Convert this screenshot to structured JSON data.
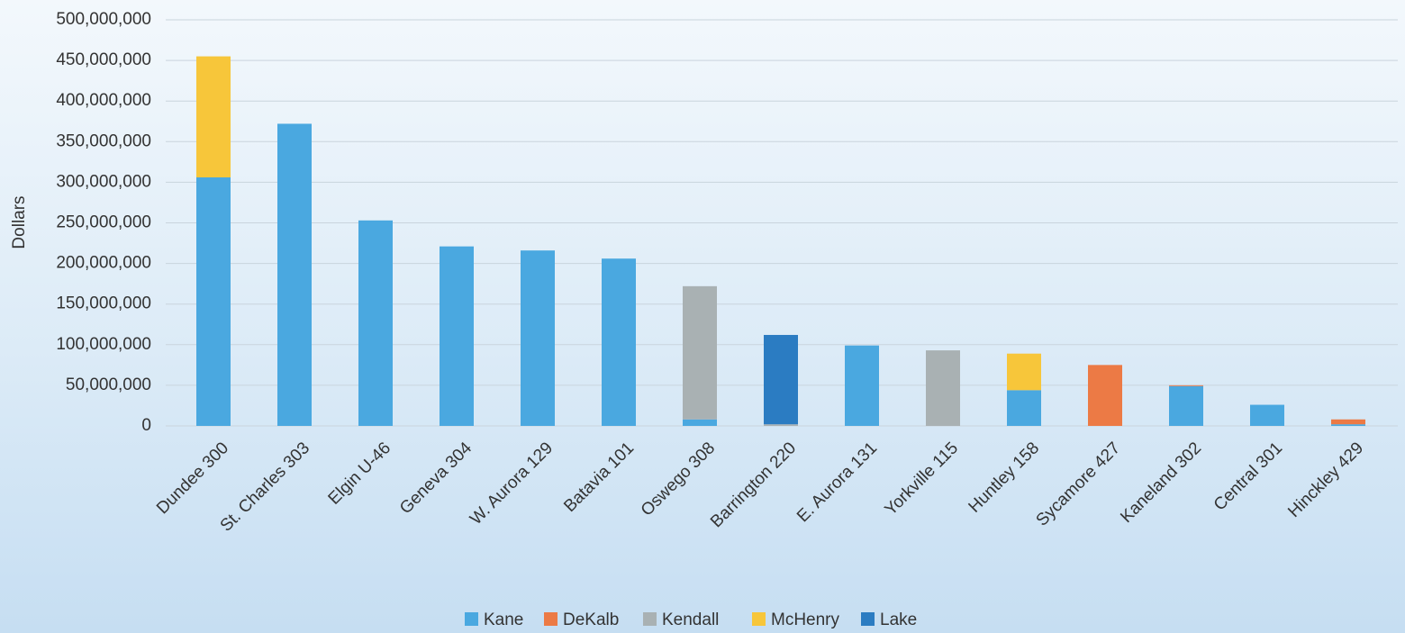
{
  "chart_data": {
    "type": "stacked_bar",
    "y_axis_label": "Dollars",
    "categories": [
      "Dundee 300",
      "St. Charles 303",
      "Elgin U-46",
      "Geneva 304",
      "W. Aurora 129",
      "Batavia 101",
      "Oswego 308",
      "Barrington 220",
      "E. Aurora 131",
      "Yorkville 115",
      "Huntley 158",
      "Sycamore 427",
      "Kaneland 302",
      "Central 301",
      "Hinckley 429"
    ],
    "series": [
      {
        "name": "Kane",
        "color": "#4aa8e0",
        "values": [
          306000000,
          372000000,
          253000000,
          221000000,
          216000000,
          206000000,
          8000000,
          0,
          99000000,
          0,
          44000000,
          0,
          49000000,
          26000000,
          2000000
        ]
      },
      {
        "name": "DeKalb",
        "color": "#ec7a45",
        "values": [
          0,
          0,
          0,
          0,
          0,
          0,
          0,
          0,
          0,
          0,
          0,
          75000000,
          1000000,
          0,
          6000000
        ]
      },
      {
        "name": "Kendall",
        "color": "#a9b1b3",
        "values": [
          0,
          0,
          0,
          0,
          0,
          0,
          164000000,
          2000000,
          0,
          93000000,
          0,
          0,
          0,
          0,
          0
        ]
      },
      {
        "name": "McHenry",
        "color": "#f7c63a",
        "values": [
          149000000,
          0,
          0,
          0,
          0,
          0,
          0,
          0,
          0,
          0,
          45000000,
          0,
          0,
          0,
          0
        ]
      },
      {
        "name": "Lake",
        "color": "#2b7cc2",
        "values": [
          0,
          0,
          0,
          0,
          0,
          0,
          0,
          110000000,
          0,
          0,
          0,
          0,
          0,
          0,
          0
        ]
      }
    ],
    "ylim": [
      0,
      500000000
    ],
    "yticks": [
      0,
      {
        "value": 50000000,
        "label": "50,000,000"
      },
      {
        "value": 100000000,
        "label": "100,000,000"
      },
      {
        "value": 150000000,
        "label": "150,000,000"
      },
      {
        "value": 200000000,
        "label": "200,000,000"
      },
      {
        "value": 250000000,
        "label": "250,000,000"
      },
      {
        "value": 300000000,
        "label": "300,000,000"
      },
      {
        "value": 350000000,
        "label": "350,000,000"
      },
      {
        "value": 400000000,
        "label": "400,000,000"
      },
      {
        "value": 450000000,
        "label": "450,000,000"
      },
      {
        "value": 500000000,
        "label": "500,000,000"
      }
    ],
    "grid": true,
    "legend": "bottom"
  }
}
